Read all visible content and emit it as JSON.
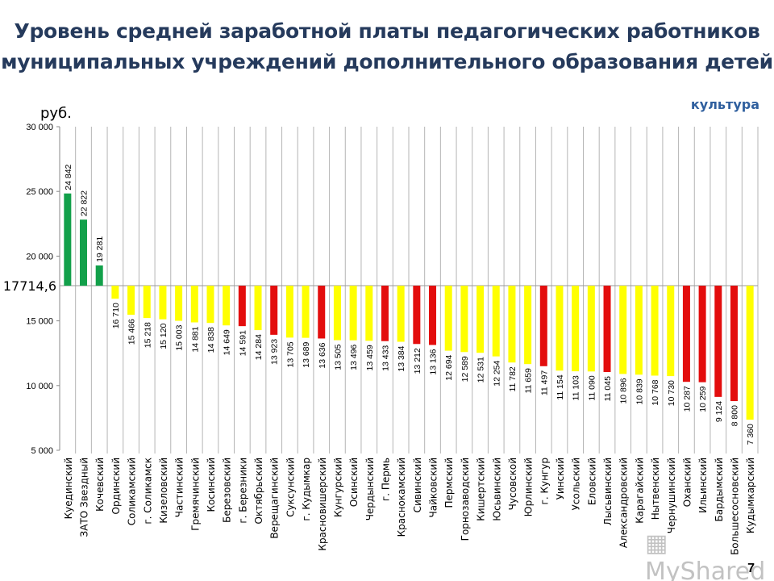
{
  "title_line1": "Уровень средней заработной платы педагогических работников",
  "title_line2": "муниципальных учреждений дополнительного образования детей",
  "unit_label": "руб.",
  "sector_label": "культура",
  "page_number": "7",
  "watermark": "MyShared",
  "chart_data": {
    "type": "bar",
    "title": "Уровень средней заработной платы педагогических работников муниципальных учреждений дополнительного образования детей",
    "ylabel": "руб.",
    "ylim": [
      5000,
      30000
    ],
    "yticks": [
      5000,
      10000,
      15000,
      20000,
      25000,
      30000
    ],
    "ytick_labels": [
      "5 000",
      "10 000",
      "15 000",
      "20 000",
      "25 000",
      "30 000"
    ],
    "reference_line": {
      "value": 17714.6,
      "label": "17714,6"
    },
    "grid": "vertical",
    "colors": {
      "above": "#12a04a",
      "below": "#ffff00",
      "highlight": "#e30d0d"
    },
    "categories": [
      "Куединский",
      "ЗАТО Звездный",
      "Кочевский",
      "Ординский",
      "Соликамский",
      "г. Соликамск",
      "Кизеловский",
      "Частинский",
      "Гремячинский",
      "Косинский",
      "Березовский",
      "г. Березники",
      "Октябрьский",
      "Верещагинский",
      "Суксунский",
      "г. Кудымкар",
      "Красновишерский",
      "Кунгурский",
      "Осинский",
      "Чердынский",
      "г. Пермь",
      "Краснокамский",
      "Сивинский",
      "Чайковский",
      "Пермский",
      "Горнозаводский",
      "Кишертский",
      "Юсьвинский",
      "Чусовской",
      "Юрлинский",
      "г. Кунгур",
      "Уинский",
      "Усольский",
      "Еловский",
      "Лысьвинский",
      "Александровский",
      "Карагайский",
      "Нытвенский",
      "Чернушинский",
      "Оханский",
      "Ильинский",
      "Бардымский",
      "Большесосновский",
      "Кудымкарский"
    ],
    "values": [
      24842,
      22822,
      19281,
      16710,
      15466,
      15218,
      15120,
      15003,
      14881,
      14838,
      14649,
      14591,
      14284,
      13923,
      13705,
      13689,
      13636,
      13505,
      13496,
      13459,
      13433,
      13384,
      13212,
      13136,
      12694,
      12589,
      12531,
      12254,
      11782,
      11659,
      11497,
      11154,
      11103,
      11090,
      11045,
      10896,
      10839,
      10768,
      10730,
      10287,
      10259,
      9124,
      8800,
      7360
    ],
    "value_labels": [
      "24 842",
      "22 822",
      "19 281",
      "16 710",
      "15 466",
      "15 218",
      "15 120",
      "15 003",
      "14 881",
      "14 838",
      "14 649",
      "14 591",
      "14 284",
      "13 923",
      "13 705",
      "13 689",
      "13 636",
      "13 505",
      "13 496",
      "13 459",
      "13 433",
      "13 384",
      "13 212",
      "13 136",
      "12 694",
      "12 589",
      "12 531",
      "12 254",
      "11 782",
      "11 659",
      "11 497",
      "11 154",
      "11 103",
      "11 090",
      "11 045",
      "10 896",
      "10 839",
      "10 768",
      "10 730",
      "10 287",
      "10 259",
      "9 124",
      "8 800",
      "7 360"
    ],
    "bar_colors": [
      "above",
      "above",
      "above",
      "below",
      "below",
      "below",
      "below",
      "below",
      "below",
      "below",
      "below",
      "highlight",
      "below",
      "highlight",
      "below",
      "below",
      "highlight",
      "below",
      "below",
      "below",
      "highlight",
      "below",
      "highlight",
      "highlight",
      "below",
      "below",
      "below",
      "below",
      "below",
      "below",
      "highlight",
      "below",
      "below",
      "below",
      "highlight",
      "below",
      "below",
      "below",
      "below",
      "highlight",
      "highlight",
      "highlight",
      "highlight",
      "below"
    ]
  }
}
